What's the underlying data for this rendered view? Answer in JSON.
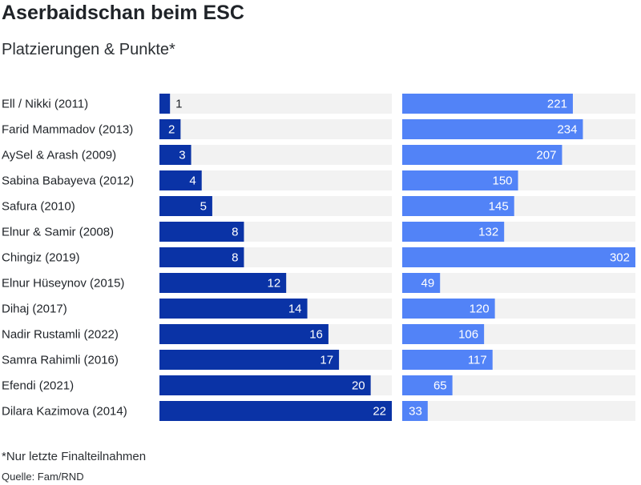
{
  "title": "Aserbaidschan beim ESC",
  "subtitle": "Platzierungen & Punkte*",
  "footnote": "*Nur letzte Finalteilnahmen",
  "source": "Quelle: Fam/RND",
  "colors": {
    "placement_bar": "#0a33a6",
    "points_bar": "#5283f7",
    "track": "#f2f2f2",
    "label_inside": "#ffffff",
    "label_outside": "#1f2328"
  },
  "chart_data": [
    {
      "type": "bar",
      "orientation": "horizontal",
      "categories": [
        "Ell / Nikki (2011)",
        "Farid Mammadov (2013)",
        "AySel & Arash (2009)",
        "Sabina Babayeva (2012)",
        "Safura (2010)",
        "Elnur & Samir (2008)",
        "Chingiz (2019)",
        "Elnur Hüseynov (2015)",
        "Dihaj (2017)",
        "Nadir Rustamli (2022)",
        "Samra Rahimli (2016)",
        "Efendi (2021)",
        "Dilara Kazimova (2014)"
      ],
      "values": [
        1,
        2,
        3,
        4,
        5,
        8,
        8,
        12,
        14,
        16,
        17,
        20,
        22
      ],
      "xlim": [
        0,
        22
      ],
      "grid": false,
      "data_labels": true
    },
    {
      "type": "bar",
      "orientation": "horizontal",
      "categories": [
        "Ell / Nikki (2011)",
        "Farid Mammadov (2013)",
        "AySel & Arash (2009)",
        "Sabina Babayeva (2012)",
        "Safura (2010)",
        "Elnur & Samir (2008)",
        "Chingiz (2019)",
        "Elnur Hüseynov (2015)",
        "Dihaj (2017)",
        "Nadir Rustamli (2022)",
        "Samra Rahimli (2016)",
        "Efendi (2021)",
        "Dilara Kazimova (2014)"
      ],
      "values": [
        221,
        234,
        207,
        150,
        145,
        132,
        302,
        49,
        120,
        106,
        117,
        65,
        33
      ],
      "xlim": [
        0,
        302
      ],
      "grid": false,
      "data_labels": true
    }
  ]
}
